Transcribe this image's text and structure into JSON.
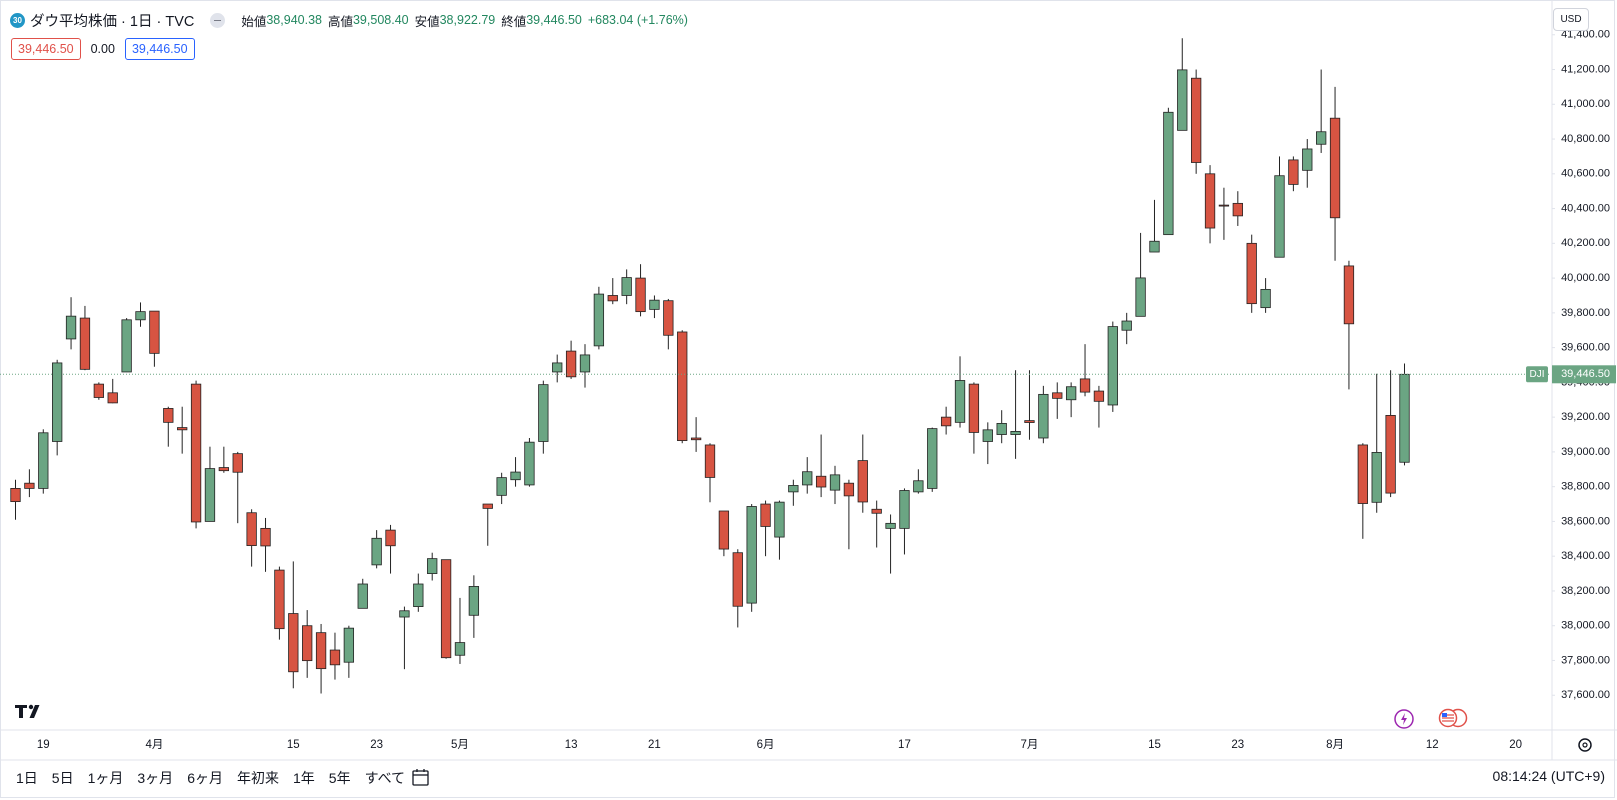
{
  "header": {
    "badge": "30",
    "symbol": "ダウ平均株価 · 1日 · TVC",
    "ohlc": [
      {
        "label": "始値",
        "value": "38,940.38"
      },
      {
        "label": "高値",
        "value": "39,508.40"
      },
      {
        "label": "安値",
        "value": "38,922.79"
      },
      {
        "label": "終値",
        "value": "39,446.50"
      }
    ],
    "change": "+683.04 (+1.76%)",
    "bid": "39,446.50",
    "spread": "0.00",
    "ask": "39,446.50"
  },
  "chart_data": {
    "type": "candlestick",
    "categories": [
      null,
      null,
      "19",
      null,
      null,
      null,
      null,
      null,
      null,
      null,
      "4月",
      null,
      null,
      null,
      null,
      null,
      null,
      null,
      null,
      null,
      "15",
      null,
      null,
      null,
      null,
      null,
      "23",
      null,
      null,
      null,
      null,
      null,
      "5月",
      null,
      null,
      null,
      null,
      null,
      null,
      null,
      "13",
      null,
      null,
      null,
      null,
      null,
      "21",
      null,
      null,
      null,
      null,
      null,
      null,
      null,
      "6月",
      null,
      null,
      null,
      null,
      null,
      null,
      null,
      null,
      null,
      "17",
      null,
      null,
      null,
      null,
      null,
      null,
      null,
      null,
      "7月",
      null,
      null,
      null,
      null,
      null,
      null,
      null,
      null,
      "15",
      null,
      null,
      null,
      null,
      null,
      "23",
      null,
      null,
      null,
      null,
      null,
      null,
      "8月",
      null,
      null,
      null,
      null,
      null,
      null,
      "12",
      null,
      null,
      null,
      null,
      null,
      "20",
      null,
      null
    ],
    "open": [
      38790,
      38820,
      38790,
      39060,
      39650,
      39770,
      39390,
      39340,
      39460,
      39760,
      39810,
      39250,
      39140,
      39390,
      38600,
      38910,
      38990,
      38650,
      38560,
      38320,
      38070,
      38000,
      37960,
      37860,
      37790,
      38100,
      38350,
      38550,
      38050,
      38110,
      38300,
      38380,
      37830,
      38060,
      38700,
      38750,
      38840,
      38810,
      39060,
      39460,
      39580,
      39460,
      39610,
      39900,
      39900,
      40000,
      39820,
      39870,
      39690,
      39080,
      39040,
      38660,
      38420,
      38130,
      38700,
      38510,
      38770,
      38810,
      38860,
      38780,
      38820,
      38950,
      38670,
      38560,
      38560,
      38770,
      38790,
      39200,
      39170,
      39390,
      39060,
      39100,
      39100,
      39180,
      39080,
      39340,
      39300,
      39420,
      39350,
      39270,
      39700,
      39780,
      40150,
      40250,
      40850,
      41150,
      40600,
      40420,
      40430,
      40200,
      39830,
      40120,
      40680,
      40620,
      40770,
      40920,
      40070,
      39040,
      38710,
      39210,
      38940.38,
      null,
      null,
      null,
      null,
      null,
      null,
      null,
      null,
      null,
      null
    ],
    "high": [
      38840,
      38900,
      39130,
      39530,
      39890,
      39840,
      39400,
      39420,
      39770,
      39860,
      39810,
      39260,
      39260,
      39410,
      39030,
      39030,
      39000,
      38670,
      38620,
      38340,
      38370,
      38090,
      38010,
      37960,
      38000,
      38270,
      38550,
      38580,
      38110,
      38300,
      38420,
      38380,
      38160,
      38290,
      38700,
      38880,
      38970,
      39080,
      39410,
      39560,
      39640,
      39620,
      39950,
      40000,
      40050,
      40080,
      39900,
      39880,
      39700,
      39200,
      39050,
      38660,
      38440,
      38700,
      38720,
      38720,
      38840,
      38970,
      39100,
      38920,
      38840,
      39100,
      38720,
      38640,
      38790,
      38900,
      39140,
      39260,
      39550,
      39400,
      39170,
      39240,
      39470,
      39470,
      39380,
      39400,
      39400,
      39620,
      39380,
      39750,
      39800,
      40260,
      40450,
      40980,
      41380,
      41200,
      40650,
      40520,
      40500,
      40250,
      40000,
      40700,
      40700,
      40800,
      41200,
      41100,
      40100,
      39050,
      39450,
      39470,
      39508.4,
      null,
      null,
      null,
      null,
      null,
      null,
      null,
      null,
      null,
      null
    ],
    "low": [
      38610,
      38740,
      38760,
      38980,
      39590,
      39470,
      39300,
      39280,
      39460,
      39720,
      39490,
      39030,
      38990,
      38560,
      38600,
      38880,
      38590,
      38340,
      38310,
      37920,
      37640,
      37700,
      37610,
      37690,
      37700,
      38100,
      38330,
      38300,
      37750,
      38080,
      38260,
      37810,
      37780,
      37930,
      38460,
      38700,
      38800,
      38800,
      38990,
      39400,
      39420,
      39370,
      39590,
      39850,
      39850,
      39780,
      39770,
      39590,
      39050,
      39000,
      38710,
      38400,
      37990,
      38080,
      38400,
      38380,
      38690,
      38760,
      38740,
      38700,
      38440,
      38650,
      38450,
      38300,
      38410,
      38760,
      38770,
      39100,
      39140,
      38990,
      38930,
      39050,
      38960,
      39070,
      39050,
      39190,
      39200,
      39320,
      39140,
      39230,
      39620,
      39780,
      40150,
      40250,
      40850,
      40600,
      40200,
      40220,
      40300,
      39800,
      39800,
      40120,
      40500,
      40520,
      40720,
      40100,
      39360,
      38500,
      38650,
      38740,
      38922.79,
      null,
      null,
      null,
      null,
      null,
      null,
      null,
      null,
      null,
      null
    ],
    "close": [
      38714,
      38790,
      39110,
      39512,
      39781,
      39475,
      39313,
      39282,
      39760,
      39807,
      39567,
      39170,
      39127,
      38597,
      38904,
      38892,
      38883,
      38461,
      38459,
      37983,
      37735,
      37799,
      37753,
      37775,
      37986,
      38240,
      38503,
      38460,
      38086,
      38240,
      38386,
      37816,
      37903,
      38226,
      38675,
      38852,
      38884,
      39056,
      39387,
      39512,
      39432,
      39558,
      39908,
      39869,
      40003,
      39807,
      39873,
      39671,
      39065,
      39070,
      38853,
      38441,
      38112,
      38686,
      38571,
      38711,
      38807,
      38886,
      38798,
      38868,
      38747,
      38712,
      38647,
      38589,
      38778,
      38834,
      39134,
      39150,
      39411,
      39112,
      39127,
      39164,
      39118,
      39169,
      39331,
      39308,
      39375,
      39344,
      39291,
      39721,
      39753,
      40001,
      40212,
      40954,
      41198,
      40665,
      40288,
      40415,
      40358,
      39853,
      39935,
      40589,
      40539,
      40743,
      40842,
      40347,
      39737,
      38703,
      38997,
      38763,
      39446.5,
      null,
      null,
      null,
      null,
      null,
      null,
      null,
      null,
      null,
      null
    ],
    "up_color": "#6ba583",
    "down_color": "#d75442",
    "wick_color": "#222222",
    "ylim": [
      37400,
      41600
    ],
    "yticks": [
      {
        "value": 37600,
        "label": "37,600.00"
      },
      {
        "value": 37800,
        "label": "37,800.00"
      },
      {
        "value": 38000,
        "label": "38,000.00"
      },
      {
        "value": 38200,
        "label": "38,200.00"
      },
      {
        "value": 38400,
        "label": "38,400.00"
      },
      {
        "value": 38600,
        "label": "38,600.00"
      },
      {
        "value": 38800,
        "label": "38,800.00"
      },
      {
        "value": 39000,
        "label": "39,000.00"
      },
      {
        "value": 39200,
        "label": "39,200.00"
      },
      {
        "value": 39400,
        "label": "39,400.00"
      },
      {
        "value": 39600,
        "label": "39,600.00"
      },
      {
        "value": 39800,
        "label": "39,800.00"
      },
      {
        "value": 40000,
        "label": "40,000.00"
      },
      {
        "value": 40200,
        "label": "40,200.00"
      },
      {
        "value": 40400,
        "label": "40,400.00"
      },
      {
        "value": 40600,
        "label": "40,600.00"
      },
      {
        "value": 40800,
        "label": "40,800.00"
      },
      {
        "value": 41000,
        "label": "41,000.00"
      },
      {
        "value": 41200,
        "label": "41,200.00"
      },
      {
        "value": 41400,
        "label": "41,400.00"
      }
    ],
    "grid": false,
    "symbol_tag": "DJI",
    "last_price_label": "39,446.50",
    "currency": "USD"
  },
  "toolbar": {
    "ranges": [
      "1日",
      "5日",
      "1ヶ月",
      "3ヶ月",
      "6ヶ月",
      "年初来",
      "1年",
      "5年",
      "すべて"
    ],
    "clock": "08:14:24 (UTC+9)"
  }
}
